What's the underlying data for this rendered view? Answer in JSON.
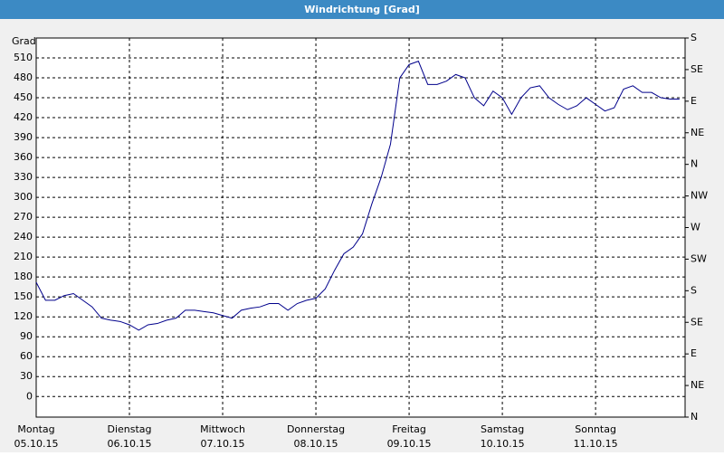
{
  "chart_data": {
    "type": "line",
    "title": "Windrichtung [Grad]",
    "y_label": "Grad",
    "x_days": [
      "Montag",
      "Dienstag",
      "Mittwoch",
      "Donnerstag",
      "Freitag",
      "Samstag",
      "Sonntag"
    ],
    "x_dates": [
      "05.10.15",
      "06.10.15",
      "07.10.15",
      "08.10.15",
      "09.10.15",
      "10.10.15",
      "11.10.15"
    ],
    "xticks": [
      0,
      1,
      2,
      3,
      4,
      5,
      6
    ],
    "xlim": [
      0,
      6.96
    ],
    "ylim": [
      -31,
      540
    ],
    "yticks": [
      0,
      30,
      60,
      90,
      120,
      150,
      180,
      210,
      240,
      270,
      300,
      330,
      360,
      390,
      420,
      450,
      480,
      510
    ],
    "y2lim": [
      0,
      540
    ],
    "y2ticks": [
      {
        "value": 0,
        "label": "N"
      },
      {
        "value": 45,
        "label": "NE"
      },
      {
        "value": 90,
        "label": "E"
      },
      {
        "value": 135,
        "label": "SE"
      },
      {
        "value": 180,
        "label": "S"
      },
      {
        "value": 225,
        "label": "SW"
      },
      {
        "value": 270,
        "label": "W"
      },
      {
        "value": 315,
        "label": "NW"
      },
      {
        "value": 360,
        "label": "N"
      },
      {
        "value": 405,
        "label": "NE"
      },
      {
        "value": 450,
        "label": "E"
      },
      {
        "value": 495,
        "label": "SE"
      },
      {
        "value": 540,
        "label": "S"
      }
    ],
    "grid": true,
    "series": [
      {
        "color": "#00008b",
        "x": [
          0,
          0.1,
          0.2,
          0.3,
          0.4,
          0.5,
          0.6,
          0.7,
          0.8,
          0.9,
          1,
          1.1,
          1.2,
          1.3,
          1.4,
          1.5,
          1.6,
          1.7,
          1.8,
          1.9,
          2,
          2.1,
          2.2,
          2.3,
          2.4,
          2.5,
          2.6,
          2.7,
          2.8,
          2.9,
          3,
          3.1,
          3.2,
          3.3,
          3.4,
          3.5,
          3.6,
          3.7,
          3.8,
          3.9,
          4,
          4.1,
          4.2,
          4.3,
          4.4,
          4.5,
          4.6,
          4.7,
          4.8,
          4.9,
          5,
          5.1,
          5.2,
          5.3,
          5.4,
          5.5,
          5.6,
          5.7,
          5.8,
          5.9,
          6,
          6.1,
          6.2,
          6.3,
          6.4,
          6.5,
          6.6,
          6.7,
          6.8,
          6.9
        ],
        "values": [
          172,
          145,
          145,
          152,
          155,
          145,
          135,
          118,
          115,
          113,
          108,
          100,
          108,
          110,
          115,
          118,
          130,
          130,
          128,
          126,
          122,
          118,
          130,
          133,
          135,
          140,
          140,
          130,
          140,
          145,
          148,
          162,
          190,
          215,
          225,
          245,
          290,
          330,
          380,
          480,
          500,
          505,
          470,
          470,
          475,
          485,
          480,
          450,
          438,
          460,
          450,
          425,
          450,
          465,
          468,
          450,
          440,
          432,
          438,
          450,
          440,
          430,
          435,
          463,
          468,
          458,
          458,
          450,
          448,
          448
        ]
      }
    ]
  }
}
